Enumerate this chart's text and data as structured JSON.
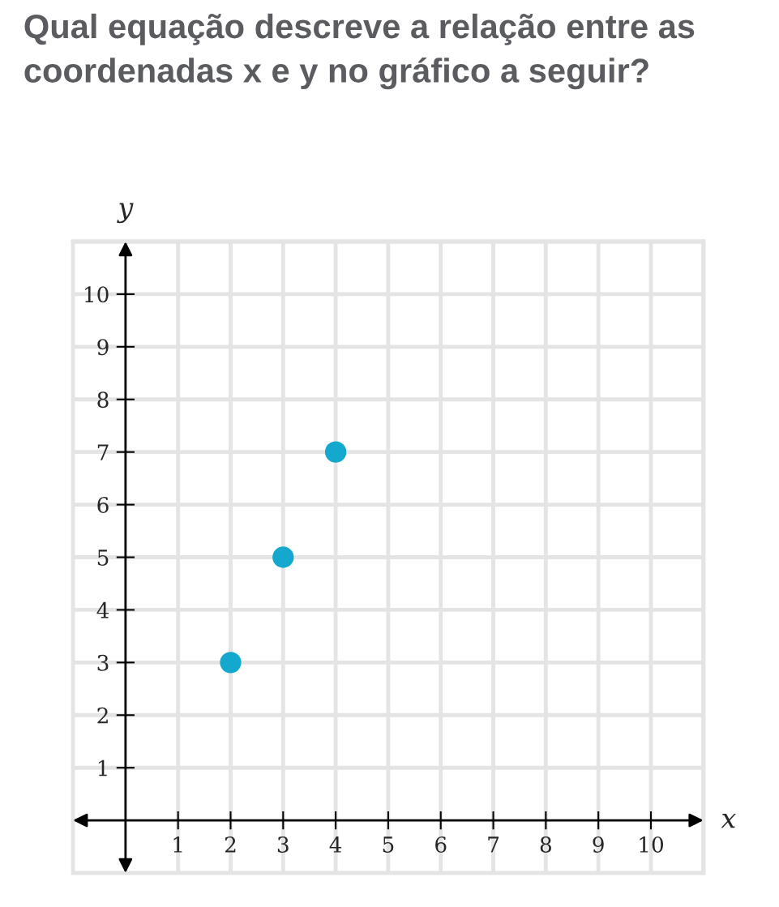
{
  "chart_data": {
    "type": "scatter",
    "title": "Qual equação descreve a relação entre as coordenadas x e y no gráfico a seguir?",
    "xlabel": "x",
    "ylabel": "y",
    "x": [
      2,
      3,
      4
    ],
    "series": [
      {
        "color": "#14a8cf",
        "values": [
          3,
          5,
          7
        ]
      }
    ],
    "xlim": [
      -1,
      11
    ],
    "ylim": [
      -1,
      11
    ],
    "xticks": [
      1,
      2,
      3,
      4,
      5,
      6,
      7,
      8,
      9,
      10
    ],
    "yticks": [
      1,
      2,
      3,
      4,
      5,
      6,
      7,
      8,
      9,
      10
    ],
    "grid": true,
    "marker": "circle",
    "legend": false
  }
}
